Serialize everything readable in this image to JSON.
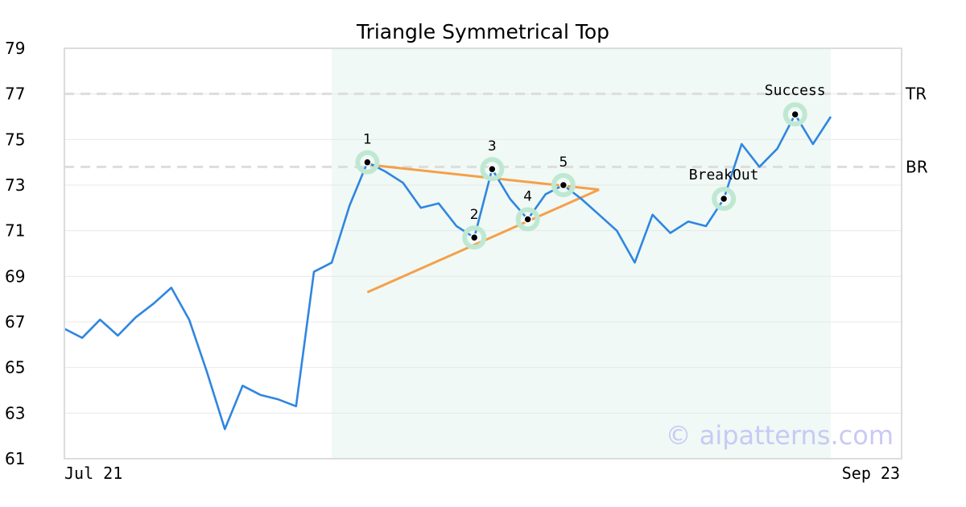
{
  "chart_data": {
    "type": "line",
    "title": "Triangle Symmetrical Top",
    "xlabel": "",
    "ylabel": "",
    "x_tick_labels": [
      "Jul 21",
      "Sep 23"
    ],
    "ylim": [
      61,
      79
    ],
    "y_ticks": [
      61,
      63,
      65,
      67,
      69,
      71,
      73,
      75,
      77,
      79
    ],
    "grid": "horizontal",
    "colors": {
      "price": "#2f86e0",
      "pattern": "#f5a04a",
      "highlight": "#e6f5ee",
      "point_halo": "#bfe8d3",
      "reference": "#dddddd",
      "watermark": "#c9c9f5"
    },
    "series": [
      {
        "values": [
          66.7,
          66.3,
          67.1,
          66.4,
          67.2,
          67.8,
          68.5,
          67.1,
          64.8,
          62.3,
          64.2,
          63.8,
          63.6,
          63.3,
          69.2,
          69.6,
          72.1,
          74.0,
          73.6,
          73.1,
          72.0,
          72.2,
          71.2,
          70.7,
          73.7,
          72.4,
          71.5,
          72.6,
          73.0,
          72.4,
          71.7,
          71.0,
          69.6,
          71.7,
          70.9,
          71.4,
          71.2,
          72.4,
          74.8,
          73.8,
          74.6,
          76.1,
          74.8,
          76.0
        ]
      }
    ],
    "highlight_range": [
      15,
      43
    ],
    "pattern_lines": [
      {
        "from": [
          17,
          73.9
        ],
        "to": [
          30,
          72.8
        ]
      },
      {
        "from": [
          17,
          68.3
        ],
        "to": [
          30,
          72.8
        ]
      }
    ],
    "points": [
      {
        "label": "1",
        "index": 17,
        "value": 74.0
      },
      {
        "label": "2",
        "index": 23,
        "value": 70.7
      },
      {
        "label": "3",
        "index": 24,
        "value": 73.7
      },
      {
        "label": "4",
        "index": 26,
        "value": 71.5
      },
      {
        "label": "5",
        "index": 28,
        "value": 73.0
      },
      {
        "label": "BreakOut",
        "index": 37,
        "value": 72.4
      },
      {
        "label": "Success",
        "index": 41,
        "value": 76.1
      }
    ],
    "reference_lines": [
      {
        "label": "TR",
        "value": 77.0
      },
      {
        "label": "BR",
        "value": 73.8
      }
    ],
    "watermark": "© aipatterns.com"
  }
}
